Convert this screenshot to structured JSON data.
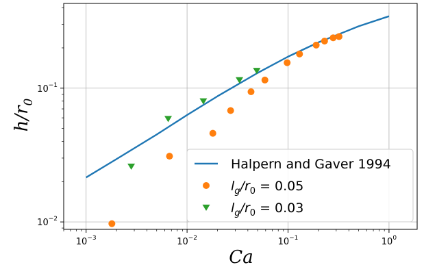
{
  "chart_data": {
    "type": "scatter",
    "xscale": "log",
    "yscale": "log",
    "xlim": [
      0.0006,
      1.9
    ],
    "ylim": [
      0.0088,
      0.43
    ],
    "grid": true,
    "legend_position": "lower-right",
    "xlabel": "Ca",
    "ylabel": "h/r0",
    "x_ticks": [
      {
        "value": 0.001,
        "base": "10",
        "exp": "−3"
      },
      {
        "value": 0.01,
        "base": "10",
        "exp": "−2"
      },
      {
        "value": 0.1,
        "base": "10",
        "exp": "−1"
      },
      {
        "value": 1,
        "base": "10",
        "exp": "0"
      }
    ],
    "y_ticks": [
      {
        "value": 0.01,
        "base": "10",
        "exp": "−2"
      },
      {
        "value": 0.1,
        "base": "10",
        "exp": "−1"
      }
    ],
    "series": [
      {
        "name": "Halpern and Gaver 1994",
        "kind": "line",
        "color": "#1f77b4",
        "x": [
          0.001,
          0.002,
          0.005,
          0.01,
          0.02,
          0.05,
          0.1,
          0.2,
          0.5,
          1.0
        ],
        "y": [
          0.0215,
          0.0295,
          0.045,
          0.063,
          0.087,
          0.13,
          0.172,
          0.22,
          0.29,
          0.345
        ]
      },
      {
        "name": "lg/r0 = 0.05",
        "kind": "scatter",
        "marker": "circle",
        "color": "#ff7f0e",
        "x": [
          0.0018,
          0.0067,
          0.018,
          0.027,
          0.043,
          0.059,
          0.098,
          0.13,
          0.19,
          0.23,
          0.28,
          0.32
        ],
        "y": [
          0.0097,
          0.031,
          0.046,
          0.068,
          0.094,
          0.115,
          0.155,
          0.18,
          0.21,
          0.225,
          0.238,
          0.243
        ]
      },
      {
        "name": "lg/r0 = 0.03",
        "kind": "scatter",
        "marker": "triangle-down",
        "color": "#2ca02c",
        "x": [
          0.0028,
          0.0065,
          0.0145,
          0.033,
          0.049
        ],
        "y": [
          0.026,
          0.059,
          0.08,
          0.115,
          0.135
        ]
      }
    ],
    "legend": [
      {
        "text": "Halpern and Gaver 1994",
        "series": 0
      },
      {
        "base": "l",
        "sub1": "g",
        "mid": "/r",
        "sub2": "0",
        "tail": " = 0.05",
        "series": 1
      },
      {
        "base": "l",
        "sub1": "g",
        "mid": "/r",
        "sub2": "0",
        "tail": " = 0.03",
        "series": 2
      }
    ]
  }
}
